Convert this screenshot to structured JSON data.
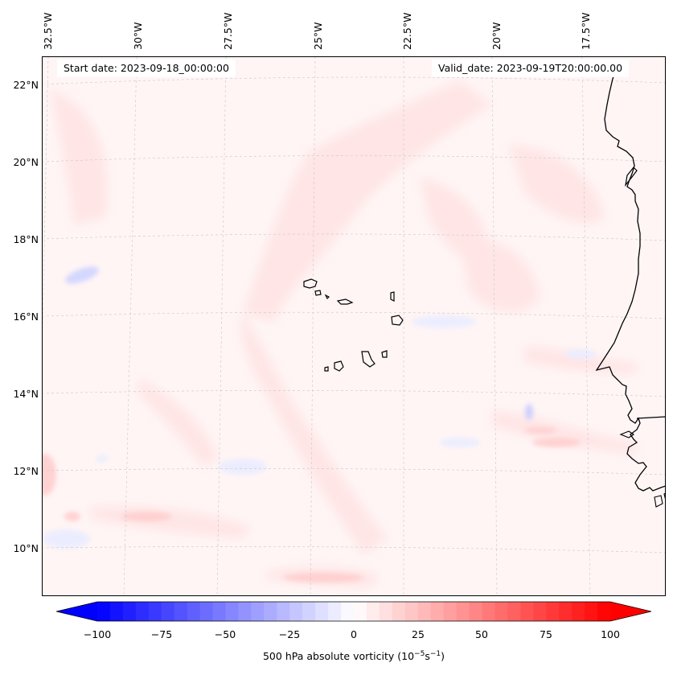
{
  "map": {
    "start_date": "Start date: 2023-09-18_00:00:00",
    "valid_date": "Valid_date: 2023-09-19T20:00:00.00",
    "lon_labels": [
      "32.5°W",
      "30°W",
      "27.5°W",
      "25°W",
      "22.5°W",
      "20°W",
      "17.5°W"
    ],
    "lat_labels": [
      "22°N",
      "20°N",
      "18°N",
      "16°N",
      "14°N",
      "12°N",
      "10°N"
    ],
    "colorbar": {
      "label_main": "500 hPa absolute vorticity (10",
      "label_exp1": "−5",
      "label_mid": "s",
      "label_exp2": "−1",
      "label_end": ")",
      "ticks": [
        "−100",
        "−75",
        "−50",
        "−25",
        "0",
        "25",
        "50",
        "75",
        "100"
      ],
      "min": -100,
      "max": 100,
      "levels": 41,
      "low_color": "#0000ff",
      "mid_color": "#ffffff",
      "high_color": "#ff0000"
    },
    "colors": {
      "background_field": "#fff5f5",
      "positive_light": "#ffe6e6",
      "positive_mid": "#ffd0d0",
      "negative_light": "#eef0ff",
      "negative_mid": "#c8ccff",
      "coast": "#000000",
      "grid": "#bdbdbd"
    }
  }
}
